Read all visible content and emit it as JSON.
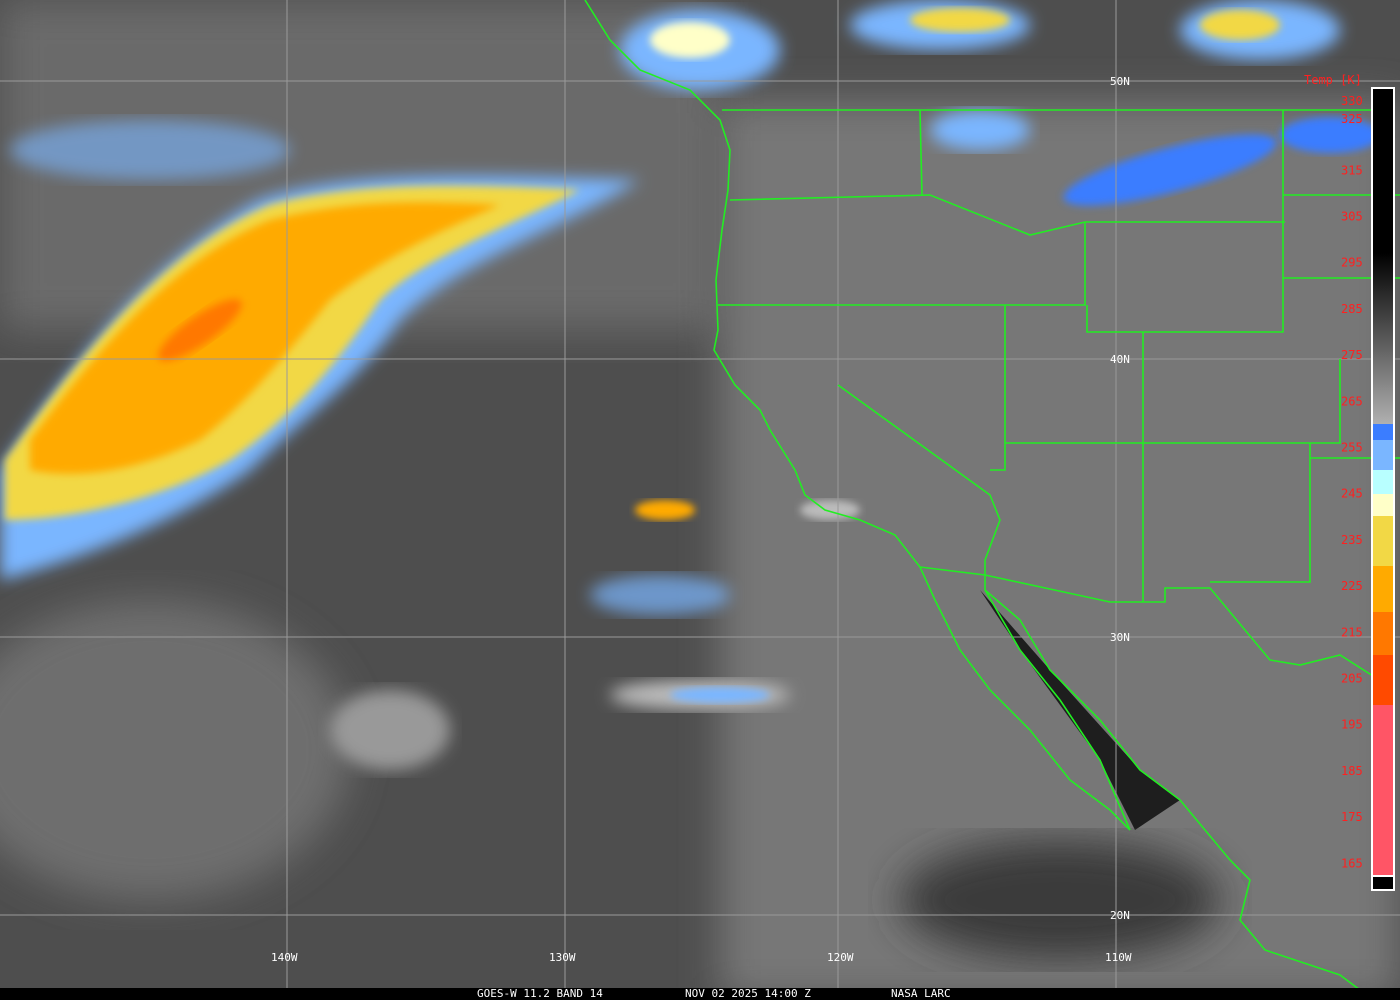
{
  "caption": {
    "satellite_band": "GOES-W 11.2 BAND 14",
    "datetime": "NOV 02 2025 14:00 Z",
    "credit": "NASA LARC"
  },
  "latitude_labels": [
    "50N",
    "40N",
    "30N",
    "20N"
  ],
  "longitude_labels": [
    "140W",
    "130W",
    "120W",
    "110W"
  ],
  "colorbar": {
    "title": "Temp [K]",
    "ticks": [
      "330",
      "325",
      "315",
      "305",
      "295",
      "285",
      "275",
      "265",
      "255",
      "245",
      "235",
      "225",
      "215",
      "205",
      "195",
      "185",
      "175",
      "165"
    ],
    "colors": {
      "warm_gray_top": "#000000",
      "blue": "#3b7dff",
      "light_blue": "#7ab6ff",
      "cyan": "#b8ffff",
      "cream": "#ffffc8",
      "yellow": "#f2d845",
      "orange": "#ffaa00",
      "dark_orange": "#ff7800",
      "red_orange": "#ff4a00",
      "pink": "#ff5566"
    }
  },
  "overlay_color": "#22ee22"
}
